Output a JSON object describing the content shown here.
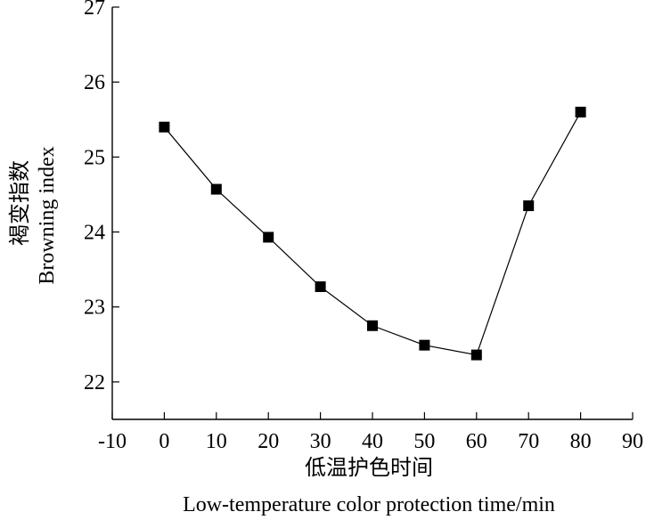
{
  "chart_data": {
    "type": "line",
    "title": "",
    "xlabel_cn": "低温护色时间",
    "xlabel_en": "Low-temperature color protection time/min",
    "ylabel_cn": "褐变指数",
    "ylabel_en": "Browning index",
    "xlim": [
      -10,
      90
    ],
    "ylim": [
      21.5,
      27
    ],
    "x_ticks": [
      -10,
      0,
      10,
      20,
      30,
      40,
      50,
      60,
      70,
      80,
      90
    ],
    "y_ticks": [
      22,
      23,
      24,
      25,
      26,
      27
    ],
    "grid": false,
    "marker": "square",
    "series": [
      {
        "x": [
          0,
          10,
          20,
          30,
          40,
          50,
          60,
          70,
          80
        ],
        "y": [
          25.4,
          24.57,
          23.93,
          23.27,
          22.75,
          22.49,
          22.36,
          24.35,
          25.6
        ]
      }
    ]
  }
}
